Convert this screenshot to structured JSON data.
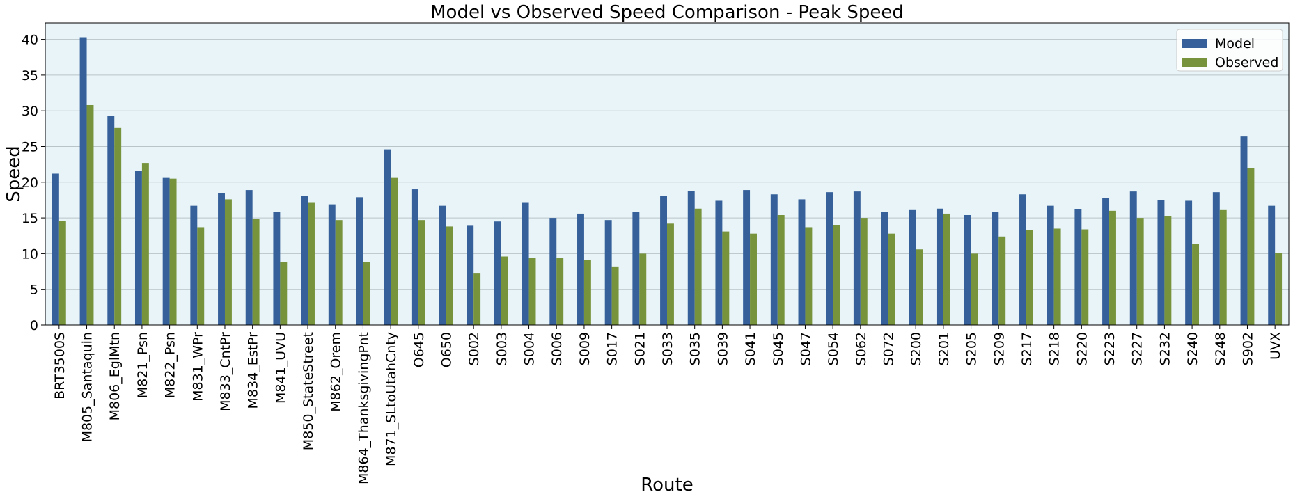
{
  "chart_data": {
    "type": "bar",
    "title": "Model vs Observed Speed Comparison - Peak Speed",
    "xlabel": "Route",
    "ylabel": "Speed",
    "ylim": [
      0,
      42.3
    ],
    "yticks": [
      0,
      5,
      10,
      15,
      20,
      25,
      30,
      35,
      40
    ],
    "grid": "horizontal",
    "legend_position": "top-right",
    "categories": [
      "BRT3500S",
      "M805_Santaquin",
      "M806_EglMtn",
      "M821_Psn",
      "M822_Psn",
      "M831_WPr",
      "M833_CntPr",
      "M834_EstPr",
      "M841_UVU",
      "M850_StateStreet",
      "M862_Orem",
      "M864_ThanksgivingPnt",
      "M871_SLtoUtahCnty",
      "O645",
      "O650",
      "S002",
      "S003",
      "S004",
      "S006",
      "S009",
      "S017",
      "S021",
      "S033",
      "S035",
      "S039",
      "S041",
      "S045",
      "S047",
      "S054",
      "S062",
      "S072",
      "S200",
      "S201",
      "S205",
      "S209",
      "S217",
      "S218",
      "S220",
      "S223",
      "S227",
      "S232",
      "S240",
      "S248",
      "S902",
      "UVX"
    ],
    "series": [
      {
        "name": "Model",
        "color": "#36609a",
        "values": [
          21.2,
          40.3,
          29.3,
          21.6,
          20.6,
          16.7,
          18.5,
          18.9,
          15.8,
          18.1,
          16.9,
          17.9,
          24.6,
          19.0,
          16.7,
          13.9,
          14.5,
          17.2,
          15.0,
          15.6,
          14.7,
          15.8,
          18.1,
          18.8,
          17.4,
          18.9,
          18.3,
          17.6,
          18.6,
          18.7,
          15.8,
          16.1,
          16.3,
          15.4,
          15.8,
          18.3,
          16.7,
          16.2,
          17.8,
          18.7,
          17.5,
          17.4,
          18.6,
          26.4,
          16.7
        ]
      },
      {
        "name": "Observed",
        "color": "#77933c",
        "values": [
          14.6,
          30.8,
          27.6,
          22.7,
          20.5,
          13.7,
          17.6,
          14.9,
          8.8,
          17.2,
          14.7,
          8.8,
          20.6,
          14.7,
          13.8,
          7.3,
          9.6,
          9.4,
          9.4,
          9.1,
          8.2,
          10.0,
          14.2,
          16.3,
          13.1,
          12.8,
          15.4,
          13.7,
          14.0,
          15.0,
          12.8,
          10.6,
          15.6,
          10.0,
          12.4,
          13.3,
          13.5,
          13.4,
          16.0,
          15.0,
          15.3,
          11.4,
          16.1,
          22.0,
          10.1
        ]
      }
    ]
  }
}
